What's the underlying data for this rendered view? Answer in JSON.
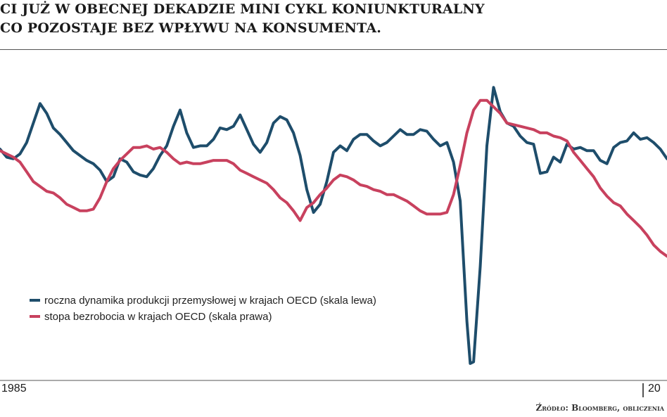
{
  "header": {
    "title_line1": "CI JUŻ W OBECNEJ DEKADZIE MINI CYKL KONIUNKTURALNY",
    "title_line2": "CO POZOSTAJE BEZ WPŁYWU NA KONSUMENTA."
  },
  "source": "Źródło: Bloomberg, obliczenia",
  "colors": {
    "oecd_production": "#1e4d6b",
    "unemployment": "#c8415e",
    "axis": "#555555"
  },
  "chart_data": {
    "type": "line",
    "title": "",
    "xlabel": "",
    "ylabel": "",
    "x_tick_labels": [
      "1985",
      "20"
    ],
    "x_domain": [
      0,
      100
    ],
    "y_domain": [
      0,
      100
    ],
    "grid": false,
    "legend": "center-left",
    "series": [
      {
        "name": "roczna dynamika produkcji przemysłowej w krajach OECD (skala lewa)",
        "color": "#1e4d6b",
        "axis": "left",
        "points": [
          [
            0,
            71
          ],
          [
            1,
            68.5
          ],
          [
            2,
            68
          ],
          [
            3,
            69.5
          ],
          [
            4,
            73
          ],
          [
            5,
            79
          ],
          [
            6,
            85
          ],
          [
            7,
            82
          ],
          [
            8,
            77.5
          ],
          [
            9,
            75.5
          ],
          [
            10,
            73
          ],
          [
            11,
            70.5
          ],
          [
            12,
            69
          ],
          [
            13,
            67.5
          ],
          [
            14,
            66.5
          ],
          [
            15,
            64.5
          ],
          [
            16,
            61
          ],
          [
            17,
            62.5
          ],
          [
            18,
            68
          ],
          [
            19,
            67
          ],
          [
            20,
            64
          ],
          [
            21,
            63
          ],
          [
            22,
            62.5
          ],
          [
            23,
            65
          ],
          [
            24,
            69
          ],
          [
            25,
            72
          ],
          [
            26,
            78
          ],
          [
            27,
            83
          ],
          [
            28,
            76
          ],
          [
            29,
            71.5
          ],
          [
            30,
            72
          ],
          [
            31,
            72
          ],
          [
            32,
            74
          ],
          [
            33,
            77.5
          ],
          [
            34,
            77
          ],
          [
            35,
            78
          ],
          [
            36,
            81.5
          ],
          [
            37,
            77
          ],
          [
            38,
            72.5
          ],
          [
            39,
            70
          ],
          [
            40,
            73
          ],
          [
            41,
            79
          ],
          [
            42,
            81
          ],
          [
            43,
            80
          ],
          [
            44,
            76
          ],
          [
            45,
            69
          ],
          [
            46,
            58.5
          ],
          [
            47,
            51.5
          ],
          [
            48,
            54
          ],
          [
            49,
            61
          ],
          [
            50,
            70
          ],
          [
            51,
            72
          ],
          [
            52,
            70.5
          ],
          [
            53,
            74
          ],
          [
            54,
            75.5
          ],
          [
            55,
            75.5
          ],
          [
            56,
            73.5
          ],
          [
            57,
            72
          ],
          [
            58,
            73
          ],
          [
            59,
            75
          ],
          [
            60,
            77
          ],
          [
            61,
            75.5
          ],
          [
            62,
            75.5
          ],
          [
            63,
            77
          ],
          [
            64,
            76.5
          ],
          [
            65,
            74
          ],
          [
            66,
            72
          ],
          [
            67,
            73
          ],
          [
            68,
            67
          ],
          [
            69,
            55
          ],
          [
            70,
            18
          ],
          [
            70.5,
            5
          ],
          [
            71,
            5.5
          ],
          [
            72,
            35
          ],
          [
            73,
            72
          ],
          [
            74,
            90
          ],
          [
            75,
            82.5
          ],
          [
            76,
            79
          ],
          [
            77,
            78
          ],
          [
            78,
            75
          ],
          [
            79,
            73
          ],
          [
            80,
            72.5
          ],
          [
            81,
            63.5
          ],
          [
            82,
            64
          ],
          [
            83,
            68.5
          ],
          [
            84,
            67
          ],
          [
            85,
            72.5
          ],
          [
            86,
            71
          ],
          [
            87,
            71.5
          ],
          [
            88,
            70.5
          ],
          [
            89,
            70.5
          ],
          [
            90,
            67.5
          ],
          [
            91,
            66.5
          ],
          [
            92,
            71.5
          ],
          [
            93,
            73
          ],
          [
            94,
            73.5
          ],
          [
            95,
            76
          ],
          [
            96,
            74
          ],
          [
            97,
            74.5
          ],
          [
            98,
            73
          ],
          [
            99,
            71
          ],
          [
            100,
            68
          ]
        ]
      },
      {
        "name": "stopa bezrobocia w krajach OECD (skala prawa)",
        "color": "#c8415e",
        "axis": "right",
        "points": [
          [
            0,
            70.5
          ],
          [
            1,
            69.5
          ],
          [
            2,
            68.5
          ],
          [
            3,
            67
          ],
          [
            4,
            64
          ],
          [
            5,
            61
          ],
          [
            6,
            59.5
          ],
          [
            7,
            58
          ],
          [
            8,
            57.5
          ],
          [
            9,
            56
          ],
          [
            10,
            54
          ],
          [
            11,
            53
          ],
          [
            12,
            52
          ],
          [
            13,
            52
          ],
          [
            14,
            52.5
          ],
          [
            15,
            56
          ],
          [
            16,
            61
          ],
          [
            17,
            65
          ],
          [
            18,
            67.5
          ],
          [
            19,
            69.5
          ],
          [
            20,
            71.5
          ],
          [
            21,
            71.5
          ],
          [
            22,
            72
          ],
          [
            23,
            71
          ],
          [
            24,
            71.5
          ],
          [
            25,
            70
          ],
          [
            26,
            68
          ],
          [
            27,
            66.5
          ],
          [
            28,
            67
          ],
          [
            29,
            66.5
          ],
          [
            30,
            66.5
          ],
          [
            31,
            67
          ],
          [
            32,
            67.5
          ],
          [
            33,
            67.5
          ],
          [
            34,
            67.5
          ],
          [
            35,
            66.5
          ],
          [
            36,
            64.5
          ],
          [
            37,
            63.5
          ],
          [
            38,
            62.5
          ],
          [
            39,
            61.5
          ],
          [
            40,
            60.5
          ],
          [
            41,
            58.5
          ],
          [
            42,
            56
          ],
          [
            43,
            54.5
          ],
          [
            44,
            52
          ],
          [
            45,
            49
          ],
          [
            46,
            53
          ],
          [
            47,
            54.5
          ],
          [
            48,
            57
          ],
          [
            49,
            59
          ],
          [
            50,
            61.5
          ],
          [
            51,
            63
          ],
          [
            52,
            62.5
          ],
          [
            53,
            61.5
          ],
          [
            54,
            60
          ],
          [
            55,
            59.5
          ],
          [
            56,
            58.5
          ],
          [
            57,
            58
          ],
          [
            58,
            57
          ],
          [
            59,
            57
          ],
          [
            60,
            56
          ],
          [
            61,
            55
          ],
          [
            62,
            53.5
          ],
          [
            63,
            52
          ],
          [
            64,
            51
          ],
          [
            65,
            51
          ],
          [
            66,
            51
          ],
          [
            67,
            51.5
          ],
          [
            68,
            57
          ],
          [
            69,
            66
          ],
          [
            70,
            76
          ],
          [
            71,
            83
          ],
          [
            72,
            86
          ],
          [
            73,
            86
          ],
          [
            74,
            84
          ],
          [
            75,
            82
          ],
          [
            76,
            79
          ],
          [
            77,
            78.5
          ],
          [
            78,
            78
          ],
          [
            79,
            77.5
          ],
          [
            80,
            77
          ],
          [
            81,
            76
          ],
          [
            82,
            76
          ],
          [
            83,
            75
          ],
          [
            84,
            74.5
          ],
          [
            85,
            73.5
          ],
          [
            86,
            70
          ],
          [
            87,
            67.5
          ],
          [
            88,
            65
          ],
          [
            89,
            62.5
          ],
          [
            90,
            59
          ],
          [
            91,
            56.5
          ],
          [
            92,
            54.5
          ],
          [
            93,
            53.5
          ],
          [
            94,
            51
          ],
          [
            95,
            49
          ],
          [
            96,
            47
          ],
          [
            97,
            44.5
          ],
          [
            98,
            41.5
          ],
          [
            99,
            39.5
          ],
          [
            100,
            38
          ]
        ]
      }
    ]
  }
}
